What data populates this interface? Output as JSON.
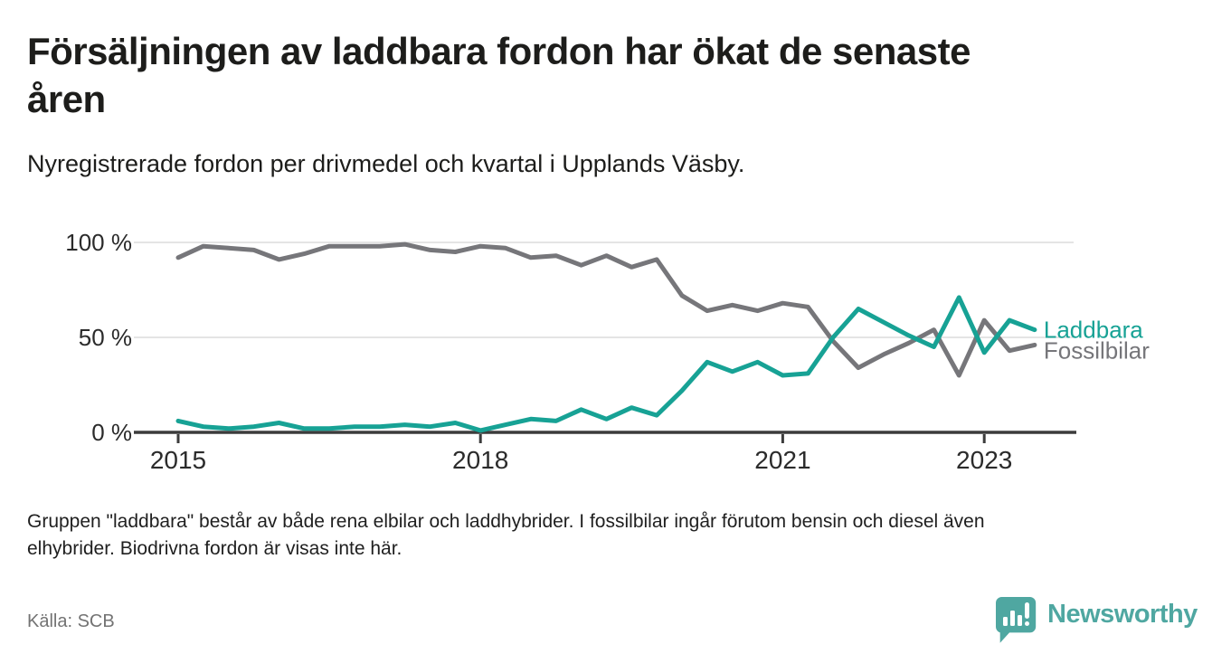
{
  "header": {
    "title_lines": [
      "Försäljningen av laddbara fordon har ökat de senaste",
      "åren"
    ],
    "subtitle": "Nyregistrerade fordon per drivmedel och kvartal i Upplands Väsby."
  },
  "chart_data": {
    "type": "line",
    "title": "Försäljningen av laddbara fordon har ökat de senaste åren",
    "subtitle": "Nyregistrerade fordon per drivmedel och kvartal i Upplands Väsby.",
    "x_unit": "quarter",
    "x_range": [
      "2015 Q1",
      "2023 Q3"
    ],
    "x": [
      2015.0,
      2015.25,
      2015.5,
      2015.75,
      2016.0,
      2016.25,
      2016.5,
      2016.75,
      2017.0,
      2017.25,
      2017.5,
      2017.75,
      2018.0,
      2018.25,
      2018.5,
      2018.75,
      2019.0,
      2019.25,
      2019.5,
      2019.75,
      2020.0,
      2020.25,
      2020.5,
      2020.75,
      2021.0,
      2021.25,
      2021.5,
      2021.75,
      2022.0,
      2022.25,
      2022.5,
      2022.75,
      2023.0,
      2023.25,
      2023.5
    ],
    "series": [
      {
        "name": "Laddbara",
        "color": "#17a295",
        "values": [
          6,
          3,
          2,
          3,
          5,
          2,
          2,
          3,
          3,
          4,
          3,
          5,
          1,
          4,
          7,
          6,
          12,
          7,
          13,
          9,
          22,
          37,
          32,
          37,
          30,
          31,
          50,
          65,
          58,
          51,
          45,
          71,
          42,
          59,
          54
        ]
      },
      {
        "name": "Fossilbilar",
        "color": "#76767a",
        "values": [
          92,
          98,
          97,
          96,
          91,
          94,
          98,
          98,
          98,
          99,
          96,
          95,
          98,
          97,
          92,
          93,
          88,
          93,
          87,
          91,
          72,
          64,
          67,
          64,
          68,
          66,
          48,
          34,
          41,
          47,
          54,
          30,
          59,
          43,
          46
        ]
      }
    ],
    "ylabel": "",
    "xlabel": "",
    "ylim": [
      0,
      100
    ],
    "yticks": [
      {
        "value": 0,
        "label": "0 %"
      },
      {
        "value": 50,
        "label": "50 %"
      },
      {
        "value": 100,
        "label": "100 %"
      }
    ],
    "xticks": [
      {
        "value": 2015,
        "label": "2015"
      },
      {
        "value": 2018,
        "label": "2018"
      },
      {
        "value": 2021,
        "label": "2021"
      },
      {
        "value": 2023,
        "label": "2023"
      }
    ],
    "grid": "horizontal",
    "legend_position": "right-of-line-ends"
  },
  "footer": {
    "note_lines": [
      "Gruppen \"laddbara\" består av både rena elbilar och laddhybrider. I fossilbilar ingår förutom bensin och diesel även",
      "elhybrider. Biodrivna fordon är visas inte här."
    ],
    "source": "Källa: SCB"
  },
  "brand": {
    "name": "Newsworthy",
    "icon": "bar-chart-speech-bubble-icon",
    "color": "#4fa7a1"
  }
}
